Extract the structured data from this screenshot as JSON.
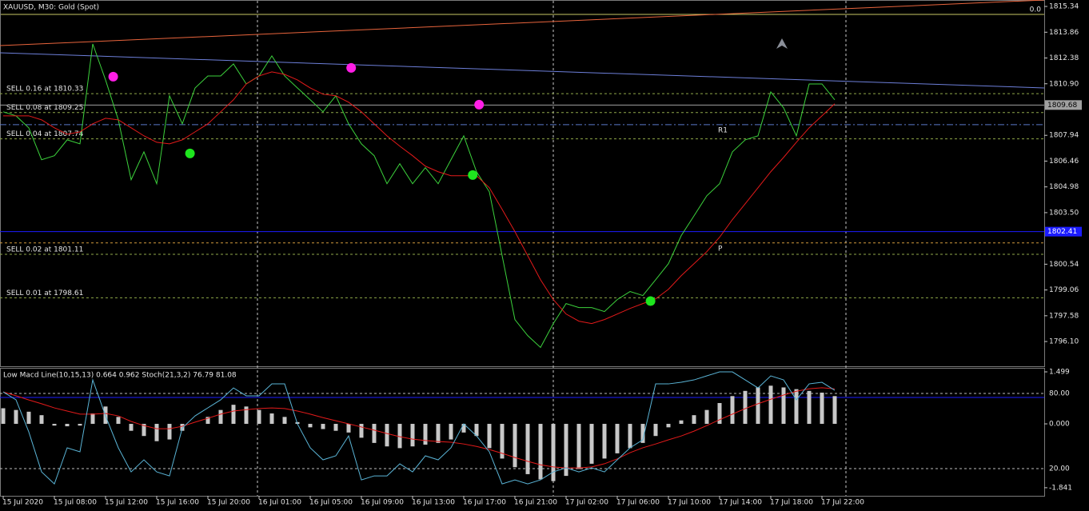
{
  "chart_data": [
    {
      "type": "line",
      "title": "XAUUSD, M30:  Gold (Spot)",
      "corner_text": "0.0",
      "categories": [
        "15 Jul 2020",
        null,
        null,
        null,
        "15 Jul 08:00",
        null,
        null,
        null,
        "15 Jul 12:00",
        null,
        null,
        null,
        "15 Jul 16:00",
        null,
        null,
        null,
        "15 Jul 20:00",
        null,
        null,
        null,
        "16 Jul 01:00",
        null,
        null,
        null,
        "16 Jul 05:00",
        null,
        null,
        null,
        "16 Jul 09:00",
        null,
        null,
        null,
        "16 Jul 13:00",
        null,
        null,
        null,
        "16 Jul 17:00",
        null,
        null,
        null,
        "16 Jul 21:00",
        null,
        null,
        null,
        "17 Jul 02:00",
        null,
        null,
        null,
        "17 Jul 06:00",
        null,
        null,
        null,
        "17 Jul 10:00",
        null,
        null,
        null,
        "17 Jul 14:00",
        null,
        null,
        null,
        "17 Jul 18:00",
        null,
        null,
        null,
        "17 Jul 22:00",
        null
      ],
      "ylim": [
        1794.68,
        1815.71
      ],
      "yticks": [
        1815.34,
        1813.86,
        1812.38,
        {
          "value": 1810.9,
          "label": "1810.90"
        },
        1807.94,
        1806.46,
        1804.98,
        {
          "value": 1803.5,
          "label": "1803.50"
        },
        1800.54,
        1799.06,
        1797.58,
        {
          "value": 1796.1,
          "label": "1796.10"
        }
      ],
      "series": [
        {
          "color": "#3cd23c",
          "values": [
            1809.29,
            1809.06,
            1808.37,
            1806.54,
            1806.77,
            1807.68,
            1807.45,
            1813.19,
            1811.12,
            1808.83,
            1805.39,
            1806.99,
            1805.16,
            1810.21,
            1808.6,
            1810.66,
            1811.35,
            1811.35,
            1812.04,
            1810.89,
            1811.35,
            1812.5,
            1811.35,
            1810.66,
            1809.98,
            1809.29,
            1810.21,
            1808.6,
            1807.45,
            1806.77,
            1805.16,
            1806.31,
            1805.16,
            1806.08,
            1805.16,
            1806.54,
            1807.91,
            1805.85,
            1804.7,
            1801.03,
            1797.36,
            1796.44,
            1795.76,
            1797.13,
            1798.28,
            1798.05,
            1798.05,
            1797.82,
            1798.51,
            1798.97,
            1798.74,
            1799.65,
            1800.57,
            1802.18,
            1803.32,
            1804.47,
            1805.16,
            1806.99,
            1807.68,
            1807.91,
            1810.43,
            1809.52,
            1807.91,
            1810.89,
            1810.89,
            1809.98
          ]
        },
        {
          "color": "#e31a1a",
          "values": [
            1809.06,
            1809.06,
            1809.06,
            1808.83,
            1808.37,
            1808.0,
            1808.14,
            1808.6,
            1808.92,
            1808.83,
            1808.37,
            1807.91,
            1807.54,
            1807.45,
            1807.68,
            1808.14,
            1808.6,
            1809.29,
            1809.98,
            1810.89,
            1811.35,
            1811.58,
            1811.44,
            1811.12,
            1810.66,
            1810.3,
            1810.21,
            1809.84,
            1809.29,
            1808.6,
            1807.91,
            1807.32,
            1806.77,
            1806.17,
            1805.85,
            1805.62,
            1805.62,
            1805.62,
            1804.93,
            1803.69,
            1802.41,
            1801.03,
            1799.65,
            1798.51,
            1797.68,
            1797.27,
            1797.13,
            1797.36,
            1797.68,
            1798.0,
            1798.28,
            1798.55,
            1799.1,
            1799.88,
            1800.57,
            1801.26,
            1802.09,
            1803.1,
            1804.01,
            1804.93,
            1805.85,
            1806.67,
            1807.54,
            1808.37,
            1809.06,
            1809.75
          ]
        }
      ],
      "trendlines": [
        {
          "color": "#e8643c",
          "values": [
            1813.09,
            1815.71
          ]
        },
        {
          "color": "#6d7fd9",
          "values": [
            1812.68,
            1810.66
          ]
        }
      ],
      "orders": [
        {
          "label": "SELL 0.16 at 1810.33",
          "value": 1810.33
        },
        {
          "label": "SELL 0.08 at 1809.25",
          "value": 1809.25
        },
        {
          "label": "SELL 0.04 at 1807.74",
          "value": 1807.74
        },
        {
          "label": "SELL 0.02 at 1801.11",
          "value": 1801.11
        },
        {
          "label": "SELL 0.01 at 1798.61",
          "value": 1798.61
        }
      ],
      "pivots": [
        {
          "label": "R1",
          "value": 1808.55,
          "color": "#5a78c8"
        },
        {
          "label": "P",
          "value": 1801.76,
          "color": "#d29b3c"
        }
      ],
      "price_lines": [
        {
          "value": 1809.68,
          "color": "#a0a0a0"
        },
        {
          "value": 1802.41,
          "color": "#1c1cff"
        }
      ],
      "signals": [
        {
          "x": 8.6,
          "value": 1811.31,
          "color": "#ff1ee6"
        },
        {
          "x": 27.2,
          "value": 1811.81,
          "color": "#ff1ee6"
        },
        {
          "x": 37.2,
          "value": 1809.7,
          "color": "#ff1ee6"
        },
        {
          "x": 14.6,
          "value": 1806.9,
          "color": "#1ee61e"
        },
        {
          "x": 36.7,
          "value": 1805.66,
          "color": "#1ee61e"
        },
        {
          "x": 50.6,
          "value": 1798.42,
          "color": "#1ee61e"
        }
      ]
    },
    {
      "type": "bar",
      "title": "Low Macd Line(10,15,13) 0.664 0.962 Stoch(21,3,2) 76.79 81.08",
      "ylim": [
        -2.074,
        1.614
      ],
      "yticks": [
        1.499,
        {
          "value": 0,
          "label": "0.000"
        },
        -1.841
      ],
      "y2lim": [
        -1.7,
        100.4
      ],
      "y2ticks": [
        {
          "value": 80,
          "label": "80.00"
        },
        {
          "value": 20,
          "label": "20.00"
        }
      ],
      "y2levels": [
        {
          "value": 76.79,
          "color": "#1c1cff"
        }
      ],
      "series": [
        {
          "color": "#c8c8c8",
          "type": "bar",
          "values": [
            0.45,
            0.4,
            0.35,
            0.25,
            -0.05,
            -0.07,
            -0.05,
            0.3,
            0.5,
            0.2,
            -0.2,
            -0.35,
            -0.5,
            -0.45,
            -0.2,
            0.0,
            0.2,
            0.4,
            0.55,
            0.5,
            0.4,
            0.3,
            0.2,
            0.05,
            -0.1,
            -0.15,
            -0.2,
            -0.25,
            -0.4,
            -0.55,
            -0.65,
            -0.7,
            -0.65,
            -0.6,
            -0.55,
            -0.45,
            -0.25,
            -0.35,
            -0.7,
            -1.0,
            -1.25,
            -1.45,
            -1.6,
            -1.65,
            -1.5,
            -1.3,
            -1.15,
            -1.0,
            -0.85,
            -0.7,
            -0.55,
            -0.35,
            -0.1,
            0.1,
            0.25,
            0.4,
            0.6,
            0.8,
            0.95,
            1.05,
            1.1,
            1.05,
            1.0,
            0.95,
            0.9,
            0.8
          ]
        },
        {
          "color": "#e31a1a",
          "type": "line",
          "values": [
            0.92,
            0.81,
            0.69,
            0.58,
            0.46,
            0.37,
            0.28,
            0.28,
            0.3,
            0.23,
            0.07,
            -0.05,
            -0.14,
            -0.14,
            -0.07,
            0.05,
            0.16,
            0.28,
            0.37,
            0.41,
            0.44,
            0.46,
            0.44,
            0.37,
            0.28,
            0.18,
            0.09,
            0.0,
            -0.09,
            -0.18,
            -0.28,
            -0.37,
            -0.44,
            -0.48,
            -0.51,
            -0.53,
            -0.58,
            -0.65,
            -0.74,
            -0.85,
            -0.97,
            -1.08,
            -1.18,
            -1.24,
            -1.27,
            -1.27,
            -1.24,
            -1.15,
            -1.01,
            -0.83,
            -0.69,
            -0.58,
            -0.46,
            -0.35,
            -0.21,
            -0.05,
            0.12,
            0.28,
            0.44,
            0.58,
            0.71,
            0.83,
            0.94,
            1.01,
            1.04,
            1.01
          ]
        },
        {
          "color": "#5ab4d6",
          "type": "line",
          "axis": "y2",
          "values": [
            81.2,
            74.9,
            49.3,
            17.4,
            7.8,
            36.6,
            33.4,
            90.8,
            62.1,
            36.6,
            17.4,
            27.0,
            17.4,
            14.2,
            52.4,
            62.1,
            68.5,
            74.9,
            84.4,
            78.1,
            78.1,
            87.6,
            87.6,
            55.7,
            36.6,
            27.0,
            30.2,
            46.1,
            11.0,
            14.2,
            14.2,
            23.8,
            17.4,
            30.2,
            27.0,
            36.6,
            55.7,
            46.1,
            33.4,
            7.8,
            11.0,
            7.8,
            11.0,
            17.4,
            20.6,
            17.4,
            20.6,
            17.4,
            27.0,
            36.6,
            43.0,
            87.6,
            87.6,
            88.9,
            90.8,
            94.0,
            97.2,
            97.2,
            90.8,
            84.4,
            94.0,
            90.8,
            74.9,
            87.6,
            88.9,
            82.5
          ]
        }
      ]
    }
  ]
}
